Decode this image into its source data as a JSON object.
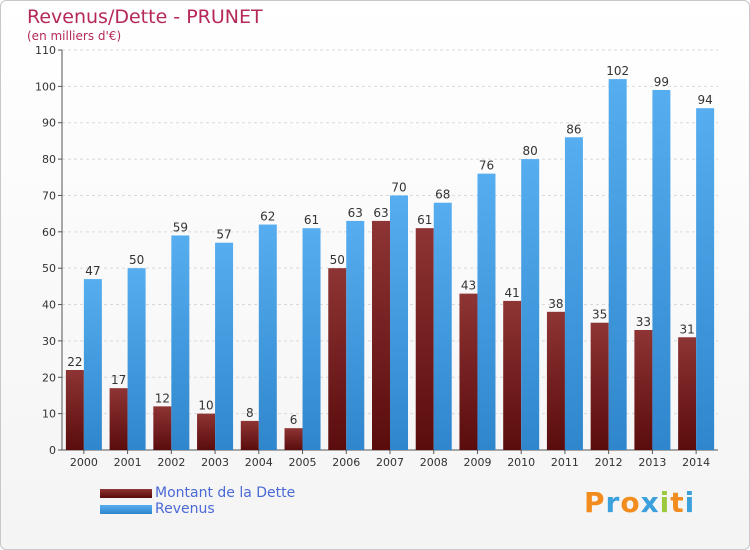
{
  "chart_data": {
    "type": "bar",
    "title": "Revenus/Dette - PRUNET",
    "subtitle": "(en milliers d'€)",
    "categories": [
      "2000",
      "2001",
      "2002",
      "2003",
      "2004",
      "2005",
      "2006",
      "2007",
      "2008",
      "2009",
      "2010",
      "2011",
      "2012",
      "2013",
      "2014"
    ],
    "series": [
      {
        "name": "Montant de la Dette",
        "color": "#7a1c1c",
        "values": [
          22,
          17,
          12,
          10,
          8,
          6,
          50,
          63,
          61,
          43,
          41,
          38,
          35,
          33,
          31
        ]
      },
      {
        "name": "Revenus",
        "color": "#4a9ee0",
        "values": [
          47,
          50,
          59,
          57,
          62,
          61,
          63,
          70,
          68,
          76,
          80,
          86,
          102,
          99,
          94
        ]
      }
    ],
    "ylim": [
      0,
      110
    ],
    "yticks": [
      0,
      10,
      20,
      30,
      40,
      50,
      60,
      70,
      80,
      90,
      100,
      110
    ],
    "grid": true,
    "legend_position": "bottom-left"
  },
  "logo": {
    "letters": [
      "P",
      "r",
      "o",
      "x",
      "i",
      "t",
      "i"
    ],
    "colors": [
      "#f28c1e",
      "#3ca0dc",
      "#f28c1e",
      "#3ca0dc",
      "#9bc83c",
      "#f28c1e",
      "#3ca0dc"
    ]
  }
}
